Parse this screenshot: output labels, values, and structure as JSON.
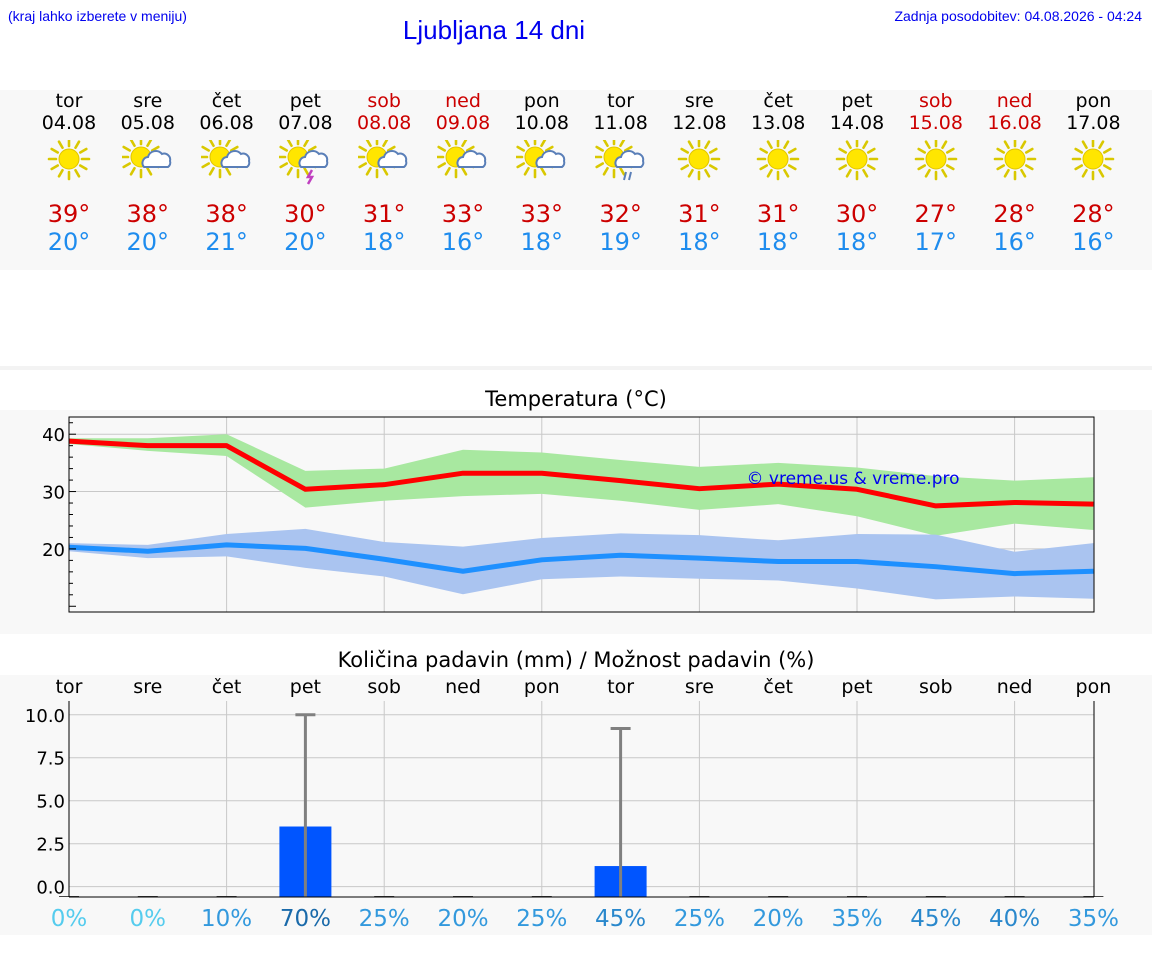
{
  "header": {
    "hint": "(kraj lahko izberete v meniju)",
    "title": "Ljubljana 14 dni",
    "updated": "Zadnja posodobitev: 04.08.2026 - 04:24"
  },
  "days": [
    {
      "name": "tor",
      "date": "04.08",
      "weekend": false,
      "icon": "sun-icon",
      "tmax": "39°",
      "tmin": "20°"
    },
    {
      "name": "sre",
      "date": "05.08",
      "weekend": false,
      "icon": "sun-cloud-icon",
      "tmax": "38°",
      "tmin": "20°"
    },
    {
      "name": "čet",
      "date": "06.08",
      "weekend": false,
      "icon": "sun-cloud-icon",
      "tmax": "38°",
      "tmin": "21°"
    },
    {
      "name": "pet",
      "date": "07.08",
      "weekend": false,
      "icon": "sun-cloud-thunder-icon",
      "tmax": "30°",
      "tmin": "20°"
    },
    {
      "name": "sob",
      "date": "08.08",
      "weekend": true,
      "icon": "sun-cloud-icon",
      "tmax": "31°",
      "tmin": "18°"
    },
    {
      "name": "ned",
      "date": "09.08",
      "weekend": true,
      "icon": "sun-cloud-icon",
      "tmax": "33°",
      "tmin": "16°"
    },
    {
      "name": "pon",
      "date": "10.08",
      "weekend": false,
      "icon": "sun-cloud-icon",
      "tmax": "33°",
      "tmin": "18°"
    },
    {
      "name": "tor",
      "date": "11.08",
      "weekend": false,
      "icon": "sun-cloud-rain-icon",
      "tmax": "32°",
      "tmin": "19°"
    },
    {
      "name": "sre",
      "date": "12.08",
      "weekend": false,
      "icon": "sun-icon",
      "tmax": "31°",
      "tmin": "18°"
    },
    {
      "name": "čet",
      "date": "13.08",
      "weekend": false,
      "icon": "sun-icon",
      "tmax": "31°",
      "tmin": "18°"
    },
    {
      "name": "pet",
      "date": "14.08",
      "weekend": false,
      "icon": "sun-icon",
      "tmax": "30°",
      "tmin": "18°"
    },
    {
      "name": "sob",
      "date": "15.08",
      "weekend": true,
      "icon": "sun-icon",
      "tmax": "27°",
      "tmin": "17°"
    },
    {
      "name": "ned",
      "date": "16.08",
      "weekend": true,
      "icon": "sun-icon",
      "tmax": "28°",
      "tmin": "16°"
    },
    {
      "name": "pon",
      "date": "17.08",
      "weekend": false,
      "icon": "sun-icon",
      "tmax": "28°",
      "tmin": "16°"
    }
  ],
  "colors": {
    "max": "#ff0000",
    "min": "#1e90ff",
    "max_band": "#a8e8a0",
    "min_band": "#aac4f0",
    "bar": "#0055ff",
    "whisker": "#808080",
    "weekend": "#cc0000",
    "link": "#0000ee"
  },
  "chart_data": [
    {
      "type": "line",
      "title": "Temperatura (°C)",
      "watermark": "© vreme.us & vreme.pro",
      "x": [
        "04.08",
        "05.08",
        "06.08",
        "07.08",
        "08.08",
        "09.08",
        "10.08",
        "11.08",
        "12.08",
        "13.08",
        "14.08",
        "15.08",
        "16.08",
        "17.08"
      ],
      "yticks": [
        20,
        30,
        40
      ],
      "ylim": [
        9,
        43
      ],
      "series": [
        {
          "values": [
            38.8,
            38.0,
            38.0,
            30.4,
            31.2,
            33.2,
            33.2,
            31.9,
            30.5,
            31.3,
            30.4,
            27.5,
            28.1,
            27.8
          ],
          "band": [
            [
              38.3,
              39.3
            ],
            [
              37.1,
              39.3
            ],
            [
              36.2,
              40.0
            ],
            [
              27.2,
              33.6
            ],
            [
              28.4,
              34.0
            ],
            [
              29.2,
              37.3
            ],
            [
              29.6,
              36.8
            ],
            [
              28.4,
              35.5
            ],
            [
              26.8,
              34.3
            ],
            [
              27.8,
              35.0
            ],
            [
              25.7,
              34.2
            ],
            [
              22.3,
              32.7
            ],
            [
              24.4,
              31.9
            ],
            [
              23.3,
              32.5
            ]
          ]
        },
        {
          "values": [
            20.3,
            19.6,
            20.7,
            20.1,
            18.2,
            16.1,
            18.1,
            18.9,
            18.4,
            17.8,
            17.8,
            16.9,
            15.7,
            16.1
          ],
          "band": [
            [
              19.6,
              21.0
            ],
            [
              18.4,
              20.7
            ],
            [
              18.7,
              22.6
            ],
            [
              16.7,
              23.5
            ],
            [
              15.2,
              21.2
            ],
            [
              12.1,
              20.4
            ],
            [
              14.7,
              21.9
            ],
            [
              15.2,
              22.7
            ],
            [
              14.8,
              22.4
            ],
            [
              14.5,
              21.5
            ],
            [
              13.1,
              22.6
            ],
            [
              11.2,
              22.5
            ],
            [
              11.7,
              19.5
            ],
            [
              11.3,
              21.0
            ]
          ]
        }
      ]
    },
    {
      "type": "bar",
      "title": "Količina padavin (mm) / Možnost padavin (%)",
      "categories": [
        "tor",
        "sre",
        "čet",
        "pet",
        "sob",
        "ned",
        "pon",
        "tor",
        "sre",
        "čet",
        "pet",
        "sob",
        "ned",
        "pon"
      ],
      "values": [
        0,
        0,
        0,
        3.5,
        0,
        0,
        0,
        1.2,
        0,
        0,
        0,
        0,
        0,
        0
      ],
      "whisker_top": [
        0,
        0,
        0,
        10.0,
        0,
        0,
        0,
        9.2,
        0,
        0,
        0,
        0,
        0,
        0
      ],
      "yticks": [
        "0.0",
        "2.5",
        "5.0",
        "7.5",
        "10.0"
      ],
      "ylim": [
        -0.6,
        10.8
      ],
      "probability": [
        "0%",
        "0%",
        "10%",
        "70%",
        "25%",
        "20%",
        "25%",
        "45%",
        "25%",
        "20%",
        "35%",
        "45%",
        "40%",
        "35%"
      ],
      "probability_colors": [
        "#55ccee",
        "#55ccee",
        "#3399dd",
        "#1a6aaa",
        "#3399dd",
        "#3399dd",
        "#3399dd",
        "#2a88cc",
        "#3399dd",
        "#3399dd",
        "#3399dd",
        "#2a88cc",
        "#2a88cc",
        "#3399dd"
      ]
    }
  ]
}
